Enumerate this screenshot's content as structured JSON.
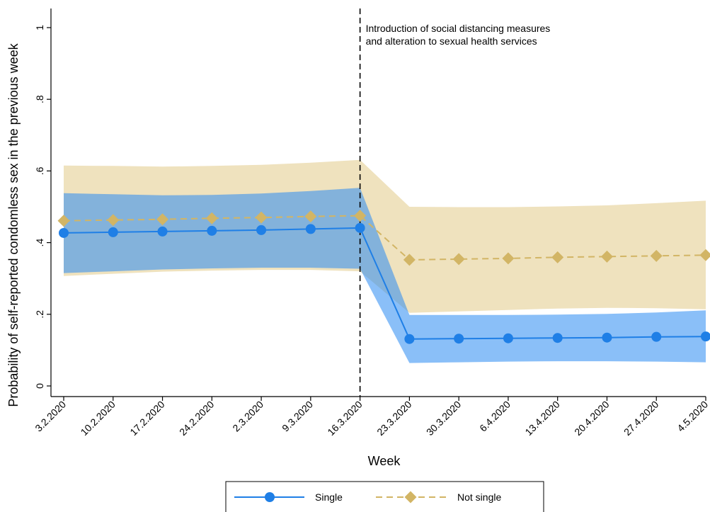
{
  "chart_data": {
    "type": "line",
    "title": "",
    "xlabel": "Week",
    "ylabel": "Probability of self-reported condomless sex in the previous week",
    "ylim": [
      0,
      1
    ],
    "yticks": [
      0,
      0.2,
      0.4,
      0.6,
      0.8,
      1
    ],
    "ytick_labels": [
      "0",
      ".2",
      ".4",
      ".6",
      ".8",
      "1"
    ],
    "categories": [
      "3.2.2020",
      "10.2.2020",
      "17.2.2020",
      "24.2.2020",
      "2.3.2020",
      "9.3.2020",
      "16.3.2020",
      "23.3.2020",
      "30.3.2020",
      "6.4.2020",
      "13.4.2020",
      "20.4.2020",
      "27.4.2020",
      "4.5.2020"
    ],
    "grid": false,
    "legend_position": "bottom",
    "annotation": {
      "category": "16.3.2020",
      "lines": [
        "Introduction of social distancing measures",
        "and alteration to sexual health services"
      ]
    },
    "series": [
      {
        "name": "Single",
        "color": "#1f7fe6",
        "band_color": "#2a8af3",
        "marker": "circle",
        "line_style": "solid",
        "values": [
          0.427,
          0.429,
          0.431,
          0.433,
          0.435,
          0.438,
          0.441,
          0.131,
          0.132,
          0.133,
          0.134,
          0.135,
          0.137,
          0.138
        ],
        "ci_upper": [
          0.538,
          0.535,
          0.532,
          0.533,
          0.537,
          0.544,
          0.553,
          0.198,
          0.198,
          0.198,
          0.199,
          0.201,
          0.205,
          0.211
        ],
        "ci_lower": [
          0.315,
          0.32,
          0.325,
          0.328,
          0.33,
          0.33,
          0.327,
          0.064,
          0.066,
          0.068,
          0.069,
          0.069,
          0.068,
          0.066
        ]
      },
      {
        "name": "Not single",
        "color": "#d2b565",
        "band_color": "#efe2be",
        "marker": "diamond",
        "line_style": "dashed",
        "values": [
          0.461,
          0.463,
          0.465,
          0.468,
          0.47,
          0.473,
          0.475,
          0.352,
          0.354,
          0.356,
          0.359,
          0.361,
          0.363,
          0.365
        ],
        "ci_upper": [
          0.615,
          0.614,
          0.612,
          0.614,
          0.617,
          0.623,
          0.631,
          0.5,
          0.499,
          0.499,
          0.501,
          0.504,
          0.51,
          0.517
        ],
        "ci_lower": [
          0.307,
          0.313,
          0.319,
          0.322,
          0.324,
          0.324,
          0.32,
          0.204,
          0.208,
          0.212,
          0.216,
          0.218,
          0.217,
          0.214
        ]
      }
    ]
  }
}
